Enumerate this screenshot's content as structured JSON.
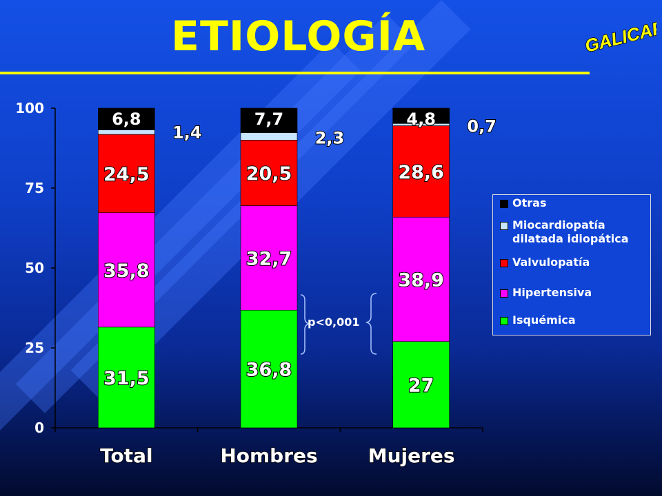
{
  "slide": {
    "title": "ETIOLOGÍA",
    "logo_text": "GALICAP",
    "annotation": "p<0,001"
  },
  "colors": {
    "title": "#ffff00",
    "Isquémica": "#00ff00",
    "Hipertensiva": "#ff00ff",
    "Valvulopatía": "#ff0000",
    "Miocardiopatía dilatada idiopática": "#c8e6ff",
    "Otras": "#000000"
  },
  "chart_data": {
    "type": "bar",
    "stacked": true,
    "categories": [
      "Total",
      "Hombres",
      "Mujeres"
    ],
    "ylim": [
      0,
      100
    ],
    "yticks": [
      "0",
      "25",
      "50",
      "75",
      "100"
    ],
    "series": [
      {
        "name": "Isquémica",
        "values": [
          31.5,
          36.8,
          27
        ],
        "labels": [
          "31,5",
          "36,8",
          "27"
        ]
      },
      {
        "name": "Hipertensiva",
        "values": [
          35.8,
          32.7,
          38.9
        ],
        "labels": [
          "35,8",
          "32,7",
          "38,9"
        ]
      },
      {
        "name": "Valvulopatía",
        "values": [
          24.5,
          20.5,
          28.6
        ],
        "labels": [
          "24,5",
          "20,5",
          "28,6"
        ]
      },
      {
        "name": "Miocardiopatía dilatada idiopática",
        "values": [
          1.4,
          2.3,
          0.7
        ],
        "labels": [
          "1,4",
          "2,3",
          "0,7"
        ]
      },
      {
        "name": "Otras",
        "values": [
          6.8,
          7.7,
          4.8
        ],
        "labels": [
          "6,8",
          "7,7",
          "4,8"
        ]
      }
    ],
    "legend": {
      "position": "right",
      "entries": [
        "Otras",
        "Miocardiopatía dilatada idiopática",
        "Valvulopatía",
        "Hipertensiva",
        "Isquémica"
      ]
    }
  }
}
